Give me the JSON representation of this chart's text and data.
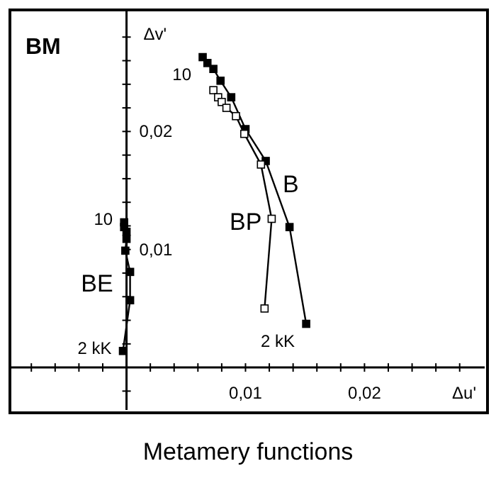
{
  "chart_data": {
    "type": "line",
    "title": "BM",
    "xlabel": "Δu'",
    "ylabel": "Δv'",
    "marker": "square",
    "xlim": [
      -0.0098,
      0.0301
    ],
    "ylim": [
      -0.0036,
      0.0303
    ],
    "xticks": [
      {
        "value": -0.008,
        "label": null
      },
      {
        "value": -0.006,
        "label": null
      },
      {
        "value": -0.004,
        "label": null
      },
      {
        "value": -0.002,
        "label": null
      },
      {
        "value": 0.002,
        "label": null
      },
      {
        "value": 0.004,
        "label": null
      },
      {
        "value": 0.006,
        "label": null
      },
      {
        "value": 0.008,
        "label": null
      },
      {
        "value": 0.01,
        "label": "0,01"
      },
      {
        "value": 0.012,
        "label": null
      },
      {
        "value": 0.014,
        "label": null
      },
      {
        "value": 0.016,
        "label": null
      },
      {
        "value": 0.018,
        "label": null
      },
      {
        "value": 0.02,
        "label": "0,02"
      },
      {
        "value": 0.022,
        "label": null
      },
      {
        "value": 0.024,
        "label": null
      },
      {
        "value": 0.026,
        "label": null
      },
      {
        "value": 0.028,
        "label": null
      }
    ],
    "yticks": [
      {
        "value": -0.002,
        "label": null
      },
      {
        "value": 0.002,
        "label": null
      },
      {
        "value": 0.004,
        "label": null
      },
      {
        "value": 0.006,
        "label": null
      },
      {
        "value": 0.008,
        "label": null
      },
      {
        "value": 0.01,
        "label": "0,01"
      },
      {
        "value": 0.012,
        "label": null
      },
      {
        "value": 0.014,
        "label": null
      },
      {
        "value": 0.016,
        "label": null
      },
      {
        "value": 0.018,
        "label": null
      },
      {
        "value": 0.02,
        "label": "0,02"
      },
      {
        "value": 0.022,
        "label": null
      },
      {
        "value": 0.024,
        "label": null
      },
      {
        "value": 0.026,
        "label": null
      },
      {
        "value": 0.028,
        "label": null
      }
    ],
    "series": [
      {
        "name": "B",
        "color": "#000000",
        "x": [
          0.0064,
          0.0068,
          0.0073,
          0.0079,
          0.0088,
          0.01,
          0.0117,
          0.0137,
          0.0151
        ],
        "values": [
          0.0263,
          0.0258,
          0.0253,
          0.0243,
          0.0229,
          0.0202,
          0.0175,
          0.0119,
          0.0037
        ]
      },
      {
        "name": "BP",
        "color": "#ffffff",
        "x": [
          0.0073,
          0.0077,
          0.008,
          0.0084,
          0.0092,
          0.0099,
          0.0113,
          0.0122,
          0.0116
        ],
        "values": [
          0.0235,
          0.0229,
          0.0225,
          0.022,
          0.0213,
          0.0198,
          0.0172,
          0.0126,
          0.005
        ]
      },
      {
        "name": "BE",
        "color": "#000000",
        "x": [
          -0.0002,
          -0.0002,
          0,
          0,
          -0.0001,
          0.0003,
          0.0003,
          -0.0003
        ],
        "values": [
          0.0123,
          0.0119,
          0.0115,
          0.0109,
          0.0099,
          0.0081,
          0.0057,
          0.0014
        ]
      }
    ],
    "annotations": [
      {
        "text": "10",
        "x": 0.0064,
        "y": 0.0263
      },
      {
        "text": "2 kK",
        "x": 0.0151,
        "y": 0.0037
      },
      {
        "text": "10",
        "x": -0.0002,
        "y": 0.0123
      },
      {
        "text": "2 kK",
        "x": -0.0003,
        "y": 0.0014
      },
      "Metamery functions"
    ]
  }
}
